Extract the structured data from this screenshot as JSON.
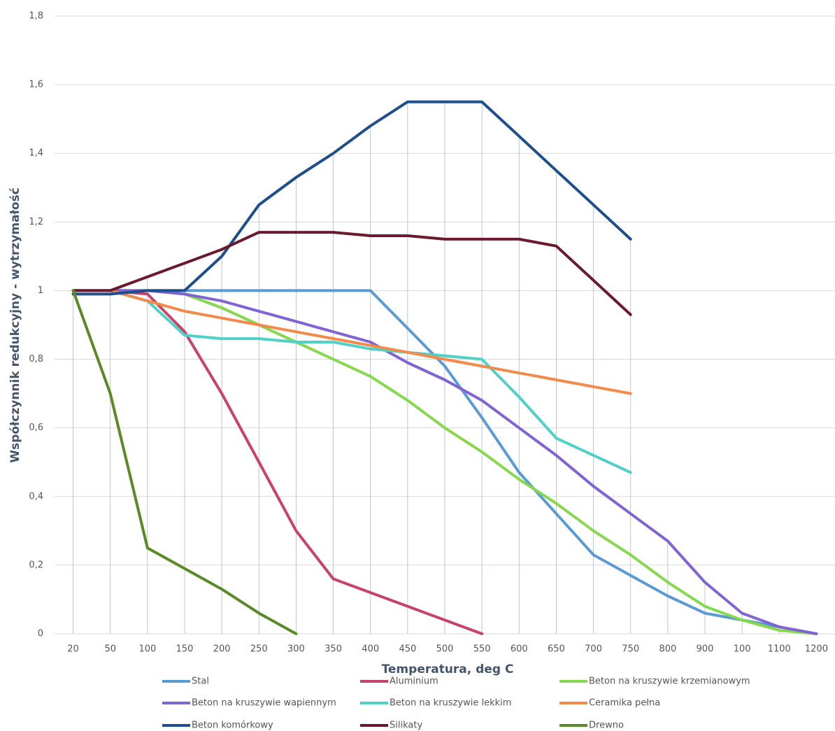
{
  "chart_data": {
    "type": "line",
    "x_label": "Temperatura, deg C",
    "y_label": "Współczynnik redukcyjny - wytrzymałość",
    "categories": [
      "20",
      "50",
      "100",
      "150",
      "200",
      "250",
      "300",
      "350",
      "400",
      "450",
      "500",
      "550",
      "600",
      "650",
      "700",
      "750",
      "800",
      "900",
      "100",
      "1100",
      "1200"
    ],
    "ylim": [
      0,
      1.8
    ],
    "yticks": [
      0,
      {
        "value": 0.2,
        "label": "0,2"
      },
      {
        "value": 0.4,
        "label": "0,4"
      },
      {
        "value": 0.6,
        "label": "0,6"
      },
      {
        "value": 0.8,
        "label": "0,8"
      },
      1,
      {
        "value": 1.2,
        "label": "1,2"
      },
      {
        "value": 1.4,
        "label": "1,4"
      },
      {
        "value": 1.6,
        "label": "1,6"
      },
      {
        "value": 1.8,
        "label": "1,8"
      }
    ],
    "grid": true,
    "drop_lines": true,
    "legend": "bottom",
    "series": [
      {
        "name": "Stal",
        "color": "#5b9bd5",
        "values": [
          1,
          1,
          1,
          1,
          1,
          1,
          1,
          1,
          1,
          0.89,
          0.78,
          0.63,
          0.47,
          0.35,
          0.23,
          0.17,
          0.11,
          0.06,
          0.04,
          0.02,
          0
        ]
      },
      {
        "name": "Aluminium",
        "color": "#c8436c",
        "values": [
          1,
          1,
          0.99,
          0.88,
          0.7,
          0.5,
          0.3,
          0.16,
          0.12,
          0.08,
          0.04,
          0,
          null,
          null,
          null,
          null,
          null,
          null,
          null,
          null,
          null
        ]
      },
      {
        "name": "Beton na kruszywie krzemianowym",
        "color": "#86d94f",
        "values": [
          1,
          1,
          1,
          0.99,
          0.95,
          0.9,
          0.85,
          0.8,
          0.75,
          0.68,
          0.6,
          0.53,
          0.45,
          0.38,
          0.3,
          0.23,
          0.15,
          0.08,
          0.04,
          0.01,
          0
        ]
      },
      {
        "name": "Beton na kruszywie wapiennym",
        "color": "#8064d4",
        "values": [
          1,
          1,
          1,
          0.99,
          0.97,
          0.94,
          0.91,
          0.88,
          0.85,
          0.79,
          0.74,
          0.68,
          0.6,
          0.52,
          0.43,
          0.35,
          0.27,
          0.15,
          0.06,
          0.02,
          0
        ]
      },
      {
        "name": "Beton na kruszywie lekkim",
        "color": "#4fd1c5",
        "values": [
          1,
          1,
          0.97,
          0.87,
          0.86,
          0.86,
          0.85,
          0.85,
          0.83,
          0.82,
          0.81,
          0.8,
          0.69,
          0.57,
          0.52,
          0.47,
          null,
          null,
          null,
          null,
          null
        ]
      },
      {
        "name": "Ceramika pełna",
        "color": "#f28a4b",
        "values": [
          1,
          1,
          0.97,
          0.94,
          0.92,
          0.9,
          0.88,
          0.86,
          0.84,
          0.82,
          0.8,
          0.78,
          0.76,
          0.74,
          0.72,
          0.7,
          null,
          null,
          null,
          null,
          null
        ]
      },
      {
        "name": "Beton komórkowy",
        "color": "#1f4e8c",
        "values": [
          0.99,
          0.99,
          1,
          1,
          1.1,
          1.25,
          1.33,
          1.4,
          1.48,
          1.55,
          1.55,
          1.55,
          1.45,
          1.35,
          1.25,
          1.15,
          null,
          null,
          null,
          null,
          null
        ]
      },
      {
        "name": "Silikaty",
        "color": "#6b1a2e",
        "values": [
          1,
          1,
          1.04,
          1.08,
          1.12,
          1.17,
          1.17,
          1.17,
          1.16,
          1.16,
          1.15,
          1.15,
          1.15,
          1.13,
          1.03,
          0.93,
          null,
          null,
          null,
          null,
          null
        ]
      },
      {
        "name": "Drewno",
        "color": "#5a8a28",
        "values": [
          1,
          0.7,
          0.25,
          0.19,
          0.13,
          0.06,
          0,
          null,
          null,
          null,
          null,
          null,
          null,
          null,
          null,
          null,
          null,
          null,
          null,
          null,
          null
        ]
      }
    ]
  }
}
